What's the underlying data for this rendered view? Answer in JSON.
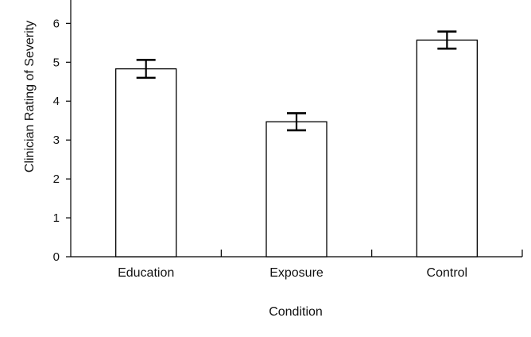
{
  "chart_data": {
    "type": "bar",
    "categories": [
      "Education",
      "Exposure",
      "Control"
    ],
    "values": [
      4.83,
      3.47,
      5.57
    ],
    "error": [
      0.23,
      0.22,
      0.22
    ],
    "title": "",
    "xlabel": "Condition",
    "ylabel": "Clinician Rating of Severity",
    "ylim": [
      0,
      6.6
    ],
    "yticks": [
      0,
      1,
      2,
      3,
      4,
      5,
      6
    ],
    "grid": false,
    "colors": {
      "bar_fill": "#ffffff",
      "stroke": "#000000"
    }
  }
}
